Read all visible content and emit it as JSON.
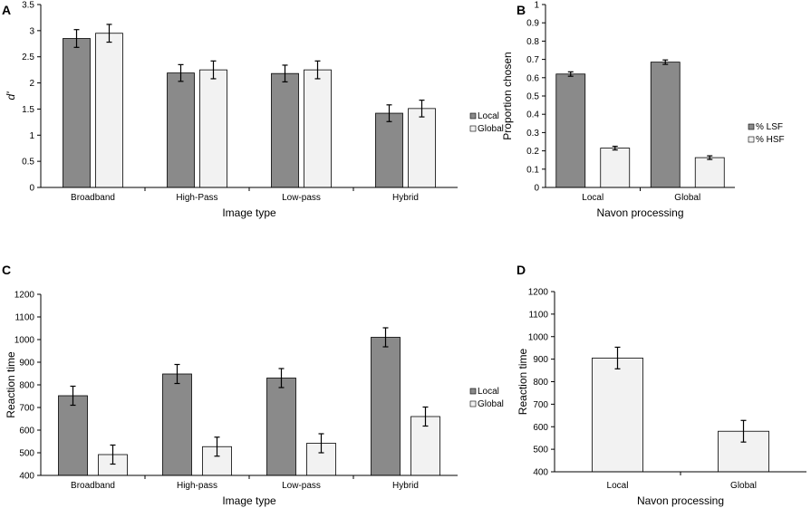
{
  "colors": {
    "local": "#8a8a8a",
    "global": "#f2f2f2",
    "axis": "#000000",
    "bar_stroke": "#000000"
  },
  "chart_data": [
    {
      "id": "A",
      "panel_label": "A",
      "type": "bar",
      "categories": [
        "Broadband",
        "High-Pass",
        "Low-pass",
        "Hybrid"
      ],
      "series": [
        {
          "name": "Local",
          "color_key": "local",
          "values": [
            2.85,
            2.19,
            2.18,
            1.42
          ],
          "errors": [
            0.17,
            0.16,
            0.16,
            0.16
          ]
        },
        {
          "name": "Global",
          "color_key": "global",
          "values": [
            2.95,
            2.25,
            2.25,
            1.51
          ],
          "errors": [
            0.17,
            0.17,
            0.17,
            0.16
          ]
        }
      ],
      "xlabel": "Image type",
      "ylabel": "d'",
      "ylim": [
        0,
        3.5
      ],
      "yticks": [
        0,
        0.5,
        1,
        1.5,
        2,
        2.5,
        3,
        3.5
      ],
      "ytick_labels": [
        "0",
        "0.5",
        "1",
        "1.5",
        "2",
        "2.5",
        "3",
        "3.5"
      ],
      "legend": [
        "Local",
        "Global"
      ],
      "legend_position": "right"
    },
    {
      "id": "B",
      "panel_label": "B",
      "type": "bar",
      "categories": [
        "Local",
        "Global"
      ],
      "series": [
        {
          "name": "% LSF",
          "color_key": "local",
          "values": [
            0.62,
            0.685
          ],
          "errors": [
            0.012,
            0.012
          ]
        },
        {
          "name": "% HSF",
          "color_key": "global",
          "values": [
            0.215,
            0.163
          ],
          "errors": [
            0.01,
            0.01
          ]
        }
      ],
      "xlabel": "Navon processing",
      "ylabel": "Proportion chosen",
      "ylim": [
        0,
        1
      ],
      "yticks": [
        0,
        0.1,
        0.2,
        0.3,
        0.4,
        0.5,
        0.6,
        0.7,
        0.8,
        0.9,
        1
      ],
      "ytick_labels": [
        "0",
        "0.1",
        "0.2",
        "0.3",
        "0.4",
        "0.5",
        "0.6",
        "0.7",
        "0.8",
        "0.9",
        "1"
      ],
      "legend": [
        "% LSF",
        "% HSF"
      ],
      "legend_position": "right"
    },
    {
      "id": "C",
      "panel_label": "C",
      "type": "bar",
      "categories": [
        "Broadband",
        "High-pass",
        "Low-pass",
        "Hybrid"
      ],
      "series": [
        {
          "name": "Local",
          "color_key": "local",
          "values": [
            752,
            848,
            830,
            1010
          ],
          "errors": [
            42,
            42,
            42,
            42
          ]
        },
        {
          "name": "Global",
          "color_key": "global",
          "values": [
            492,
            527,
            542,
            660
          ],
          "errors": [
            42,
            42,
            42,
            42
          ]
        }
      ],
      "xlabel": "Image type",
      "ylabel": "Reaction time",
      "ylim": [
        400,
        1200
      ],
      "yticks": [
        400,
        500,
        600,
        700,
        800,
        900,
        1000,
        1100,
        1200
      ],
      "ytick_labels": [
        "400",
        "500",
        "600",
        "700",
        "800",
        "900",
        "1000",
        "1100",
        "1200"
      ],
      "legend": [
        "Local",
        "Global"
      ],
      "legend_position": "right"
    },
    {
      "id": "D",
      "panel_label": "D",
      "type": "bar",
      "categories": [
        "Local",
        "Global"
      ],
      "series": [
        {
          "name": "Reaction time",
          "color_key": "global",
          "values": [
            905,
            580
          ],
          "errors": [
            48,
            48
          ]
        }
      ],
      "xlabel": "Navon processing",
      "ylabel": "Reaction time",
      "ylim": [
        400,
        1200
      ],
      "yticks": [
        400,
        500,
        600,
        700,
        800,
        900,
        1000,
        1100,
        1200
      ],
      "ytick_labels": [
        "400",
        "500",
        "600",
        "700",
        "800",
        "900",
        "1000",
        "1100",
        "1200"
      ],
      "legend": []
    }
  ]
}
